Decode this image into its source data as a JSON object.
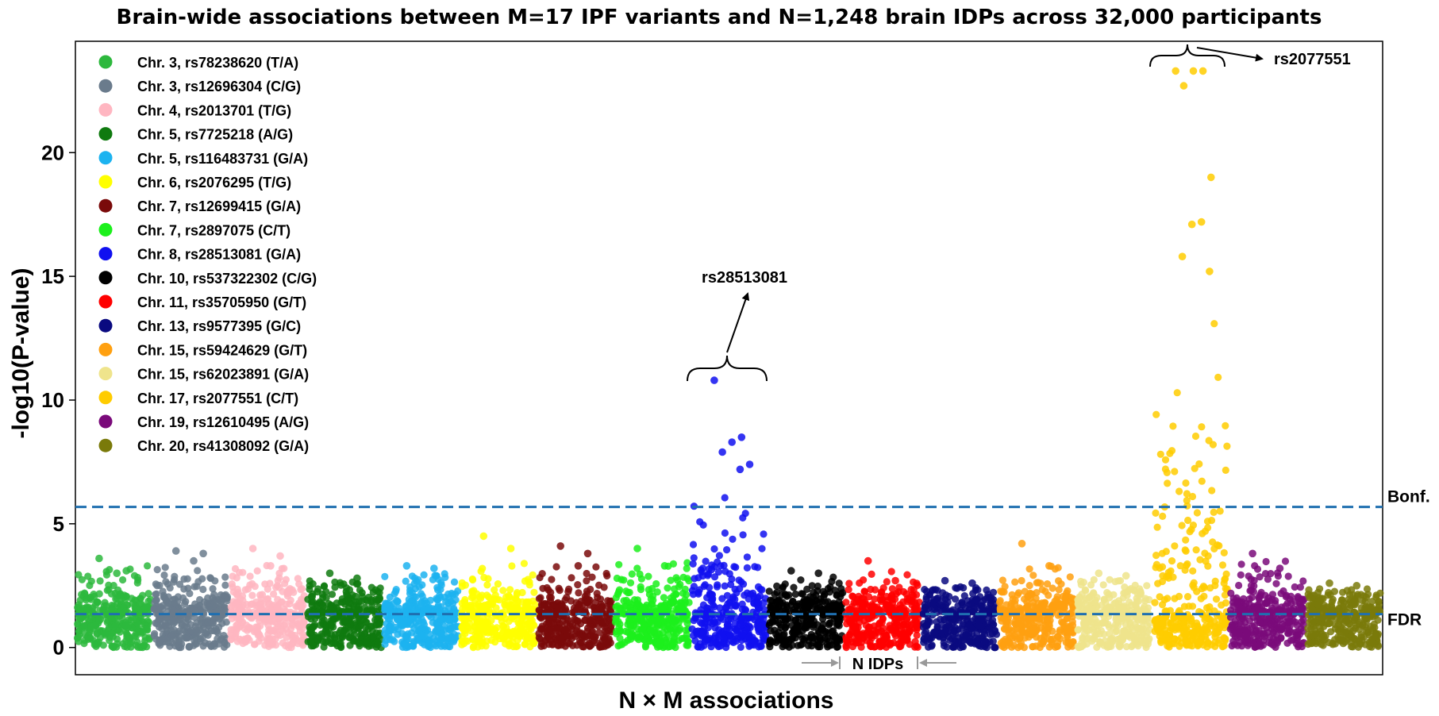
{
  "chart_data": {
    "type": "scatter",
    "title": "Brain-wide associations between M=17 IPF variants and N=1,248 brain IDPs across 32,000 participants",
    "xlabel": "N × M associations",
    "ylabel": "-log10(P-value)",
    "ylim": [
      -1.1,
      24.5
    ],
    "yticks": [
      0,
      5,
      10,
      15,
      20
    ],
    "grid": false,
    "legend_position": "top-left",
    "points_per_group": 1248,
    "series": [
      {
        "name": "Chr. 3, rs78238620 (T/A)",
        "color": "#2db83d",
        "peak": 3.6,
        "annotated_top": [
          3.6,
          3.1,
          3.0
        ]
      },
      {
        "name": "Chr. 3, rs12696304 (C/G)",
        "color": "#6a7b8c",
        "peak": 3.9,
        "annotated_top": [
          3.9,
          3.8,
          3.5
        ]
      },
      {
        "name": "Chr. 4, rs2013701 (T/G)",
        "color": "#ffb6c1",
        "peak": 4.0,
        "annotated_top": [
          4.0,
          3.7,
          3.3
        ]
      },
      {
        "name": "Chr. 5, rs7725218 (A/G)",
        "color": "#0f7a0f",
        "peak": 3.0,
        "annotated_top": [
          3.0,
          2.8
        ]
      },
      {
        "name": "Chr. 5, rs116483731 (G/A)",
        "color": "#1cb3f0",
        "peak": 3.3,
        "annotated_top": [
          3.3,
          3.2
        ]
      },
      {
        "name": "Chr. 6, rs2076295 (T/G)",
        "color": "#ffff00",
        "peak": 4.5,
        "annotated_top": [
          4.5,
          4.0
        ]
      },
      {
        "name": "Chr. 7, rs12699415 (G/A)",
        "color": "#7a0a0a",
        "peak": 4.1,
        "annotated_top": [
          4.1,
          3.8,
          3.3
        ]
      },
      {
        "name": "Chr. 7, rs2897075 (C/T)",
        "color": "#1cf01c",
        "peak": 4.0,
        "annotated_top": [
          4.0,
          3.3
        ]
      },
      {
        "name": "Chr. 8, rs28513081 (G/A)",
        "color": "#1010f0",
        "peak": 10.8,
        "annotated_top": [
          10.8,
          8.5,
          8.3,
          7.9,
          7.4,
          7.2
        ]
      },
      {
        "name": "Chr. 10, rs537322302 (C/G)",
        "color": "#000000",
        "peak": 3.1,
        "annotated_top": [
          3.1,
          3.0
        ]
      },
      {
        "name": "Chr. 11, rs35705950 (G/T)",
        "color": "#ff0000",
        "peak": 3.5,
        "annotated_top": [
          3.5,
          2.7
        ]
      },
      {
        "name": "Chr. 13, rs9577395 (G/C)",
        "color": "#0a0a80",
        "peak": 2.7,
        "annotated_top": [
          2.7,
          2.6
        ]
      },
      {
        "name": "Chr. 15, rs59424629 (G/T)",
        "color": "#ffa010",
        "peak": 4.2,
        "annotated_top": [
          4.2,
          3.3
        ]
      },
      {
        "name": "Chr. 15, rs62023891 (G/A)",
        "color": "#efe48c",
        "peak": 3.0,
        "annotated_top": [
          3.0,
          2.9
        ]
      },
      {
        "name": "Chr. 17, rs2077551 (C/T)",
        "color": "#ffcc00",
        "peak": 23.3,
        "annotated_top": [
          23.3,
          23.3,
          23.3,
          22.7,
          19.0,
          17.2,
          17.1,
          15.8,
          15.2
        ]
      },
      {
        "name": "Chr. 19, rs12610495 (A/G)",
        "color": "#7a0a7a",
        "peak": 3.8,
        "annotated_top": [
          3.8,
          3.2
        ]
      },
      {
        "name": "Chr. 20, rs41308092 (G/A)",
        "color": "#7a7a0a",
        "peak": 2.6,
        "annotated_top": [
          2.6,
          2.5,
          2.3
        ]
      }
    ],
    "thresholds": [
      {
        "name": "Bonf.",
        "y": 5.68
      },
      {
        "name": "FDR",
        "y": 1.35
      }
    ],
    "annotations": [
      {
        "text": "rs28513081",
        "series": "Chr. 8, rs28513081 (G/A)"
      },
      {
        "text": "rs2077551",
        "series": "Chr. 17, rs2077551 (C/T)"
      },
      {
        "text": "N IDPs"
      }
    ]
  }
}
